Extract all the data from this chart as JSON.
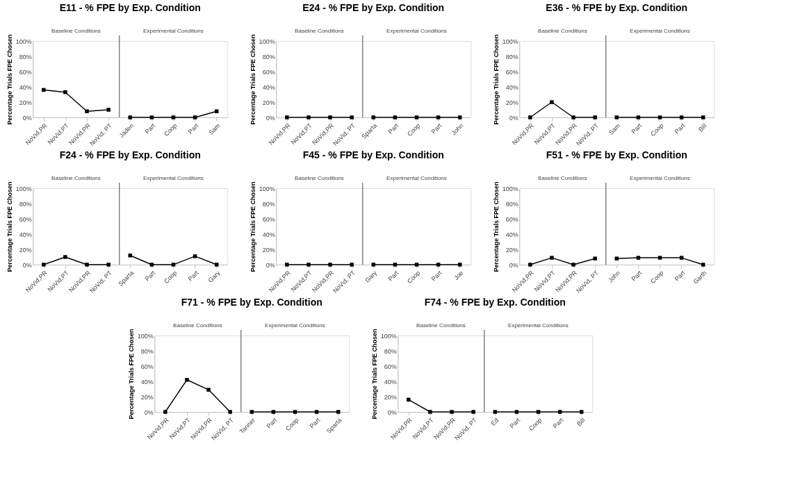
{
  "chart_data": [
    {
      "type": "line",
      "title": "E11 - % FPE by Exp. Condition",
      "ylabel": "Percentage Trials FPE Chosen",
      "categories": [
        "NoVid,PR",
        "NoVid,PT",
        "NoVid,PR",
        "NoVid, PT",
        "Jaden",
        "Part",
        "Coop",
        "Part",
        "Sam"
      ],
      "ylim": [
        0,
        100
      ],
      "yticks": [
        {
          "value": 0,
          "label": "0%"
        },
        {
          "value": 20,
          "label": "20%"
        },
        {
          "value": 40,
          "label": "40%"
        },
        {
          "value": 60,
          "label": "60%"
        },
        {
          "value": 80,
          "label": "80%"
        },
        {
          "value": 100,
          "label": "100%"
        }
      ],
      "annotations": [
        "Baseline Conditions",
        "Experimental  Conditions"
      ],
      "marker": "square",
      "series": [
        {
          "color": "#000000",
          "values": [
            36,
            33,
            8,
            10,
            null,
            null,
            null,
            null,
            null
          ]
        },
        {
          "color": "#000000",
          "values": [
            null,
            null,
            null,
            null,
            0,
            0,
            0,
            0,
            8
          ]
        }
      ]
    },
    {
      "type": "line",
      "title": "E24 - % FPE by Exp. Condition",
      "ylabel": "Percentage Trials FPE Chosen",
      "categories": [
        "NoVid,PR",
        "NoVid,PT",
        "NoVid,PR",
        "NoVid, PT",
        "Sparta",
        "Part",
        "Coop",
        "Part",
        "John"
      ],
      "ylim": [
        0,
        100
      ],
      "yticks": [
        {
          "value": 0,
          "label": "0%"
        },
        {
          "value": 20,
          "label": "20%"
        },
        {
          "value": 40,
          "label": "40%"
        },
        {
          "value": 60,
          "label": "60%"
        },
        {
          "value": 80,
          "label": "80%"
        },
        {
          "value": 100,
          "label": "100%"
        }
      ],
      "annotations": [
        "Baseline Conditions",
        "Experimental  Conditions"
      ],
      "marker": "square",
      "series": [
        {
          "color": "#000000",
          "values": [
            0,
            0,
            0,
            0,
            null,
            null,
            null,
            null,
            null
          ]
        },
        {
          "color": "#000000",
          "values": [
            null,
            null,
            null,
            null,
            0,
            0,
            0,
            0,
            0
          ]
        }
      ]
    },
    {
      "type": "line",
      "title": "E36 - % FPE by Exp. Condition",
      "ylabel": "Percentage Trials FPE Chosen",
      "categories": [
        "NoVid,PR",
        "NoVid,PT",
        "NoVid,PR",
        "NoVid, PT",
        "Sam",
        "Part",
        "Coop",
        "Part",
        "Bill"
      ],
      "ylim": [
        0,
        100
      ],
      "yticks": [
        {
          "value": 0,
          "label": "0%"
        },
        {
          "value": 20,
          "label": "20%"
        },
        {
          "value": 40,
          "label": "40%"
        },
        {
          "value": 60,
          "label": "60%"
        },
        {
          "value": 80,
          "label": "80%"
        },
        {
          "value": 100,
          "label": "100%"
        }
      ],
      "annotations": [
        "Baseline Conditions",
        "Experimental Conditions"
      ],
      "marker": "square",
      "series": [
        {
          "color": "#000000",
          "values": [
            0,
            20,
            0,
            0,
            null,
            null,
            null,
            null,
            null
          ]
        },
        {
          "color": "#000000",
          "values": [
            null,
            null,
            null,
            null,
            0,
            0,
            0,
            0,
            0
          ]
        }
      ]
    },
    {
      "type": "line",
      "title": "F24 - % FPE by Exp. Condition",
      "ylabel": "Percentage Trials FPE Chosen",
      "categories": [
        "NoVid,PR",
        "NoVid,PT",
        "NoVid,PR",
        "NoVid, PT",
        "Sparta",
        "Part",
        "Coop",
        "Part",
        "Gary"
      ],
      "ylim": [
        0,
        100
      ],
      "yticks": [
        {
          "value": 0,
          "label": "0%"
        },
        {
          "value": 20,
          "label": "20%"
        },
        {
          "value": 40,
          "label": "40%"
        },
        {
          "value": 60,
          "label": "60%"
        },
        {
          "value": 80,
          "label": "80%"
        },
        {
          "value": 100,
          "label": "100%"
        }
      ],
      "annotations": [
        "Baseline Conditions",
        "Experimental Conditions"
      ],
      "marker": "square",
      "series": [
        {
          "color": "#000000",
          "values": [
            0,
            10,
            0,
            0,
            null,
            null,
            null,
            null,
            null
          ]
        },
        {
          "color": "#000000",
          "values": [
            null,
            null,
            null,
            null,
            12,
            0,
            0,
            11,
            0
          ]
        }
      ]
    },
    {
      "type": "line",
      "title": "F45 - % FPE by Exp. Condition",
      "ylabel": "Percentage Trials FPE Chosen",
      "categories": [
        "NoVid,PR",
        "NoVid,PT",
        "NoVid,PR",
        "NoVid, PT",
        "Gary",
        "Part",
        "Coop",
        "Part",
        "Joe"
      ],
      "ylim": [
        0,
        100
      ],
      "yticks": [
        {
          "value": 0,
          "label": "0%"
        },
        {
          "value": 20,
          "label": "20%"
        },
        {
          "value": 40,
          "label": "40%"
        },
        {
          "value": 60,
          "label": "60%"
        },
        {
          "value": 80,
          "label": "80%"
        },
        {
          "value": 100,
          "label": "100%"
        }
      ],
      "annotations": [
        "Baseline Conditions",
        "Experimental Conditions"
      ],
      "marker": "square",
      "series": [
        {
          "color": "#000000",
          "values": [
            0,
            0,
            0,
            0,
            null,
            null,
            null,
            null,
            null
          ]
        },
        {
          "color": "#000000",
          "values": [
            null,
            null,
            null,
            null,
            0,
            0,
            0,
            0,
            0
          ]
        }
      ]
    },
    {
      "type": "line",
      "title": "F51 - % FPE by Exp. Condition",
      "ylabel": "Percentage Trials FPE Chosen",
      "categories": [
        "NoVid,PR",
        "NoVid,PT",
        "NoVid,PR",
        "NoVid, PT",
        "John",
        "Part",
        "Coop",
        "Part",
        "Garth"
      ],
      "ylim": [
        0,
        100
      ],
      "yticks": [
        {
          "value": 0,
          "label": "0%"
        },
        {
          "value": 20,
          "label": "20%"
        },
        {
          "value": 40,
          "label": "40%"
        },
        {
          "value": 60,
          "label": "60%"
        },
        {
          "value": 80,
          "label": "80%"
        },
        {
          "value": 100,
          "label": "100%"
        }
      ],
      "annotations": [
        "Baseline Conditions",
        "Experimental Conditions"
      ],
      "marker": "square",
      "series": [
        {
          "color": "#000000",
          "values": [
            0,
            9,
            0,
            8,
            null,
            null,
            null,
            null,
            null
          ]
        },
        {
          "color": "#000000",
          "values": [
            null,
            null,
            null,
            null,
            8,
            9,
            9,
            9,
            0
          ]
        }
      ]
    },
    {
      "type": "line",
      "title": "F71 - % FPE by Exp. Condition",
      "ylabel": "Percentage Trials FPE Chosen",
      "categories": [
        "NoVid,PR",
        "NoVid,PT",
        "NoVid,PR",
        "NoVid, PT",
        "Tanner",
        "Part",
        "Coop",
        "Part",
        "Sparta"
      ],
      "ylim": [
        0,
        100
      ],
      "yticks": [
        {
          "value": 0,
          "label": "0%"
        },
        {
          "value": 20,
          "label": "20%"
        },
        {
          "value": 40,
          "label": "40%"
        },
        {
          "value": 60,
          "label": "60%"
        },
        {
          "value": 80,
          "label": "80%"
        },
        {
          "value": 100,
          "label": "100%"
        }
      ],
      "annotations": [
        "Baseline Conditions",
        "Experimental Conditions"
      ],
      "marker": "square",
      "series": [
        {
          "color": "#000000",
          "values": [
            0,
            42,
            29,
            0,
            null,
            null,
            null,
            null,
            null
          ]
        },
        {
          "color": "#000000",
          "values": [
            null,
            null,
            null,
            null,
            0,
            0,
            0,
            0,
            0
          ]
        }
      ]
    },
    {
      "type": "line",
      "title": "F74 - % FPE by Exp. Condition",
      "ylabel": "Percentage Trials FPE Chosen",
      "categories": [
        "NoVid,PR",
        "NoVid,PT",
        "NoVid,PR",
        "NoVid, PT",
        "Ed",
        "Part",
        "Coop",
        "Part",
        "Bill"
      ],
      "ylim": [
        0,
        100
      ],
      "yticks": [
        {
          "value": 0,
          "label": "0%"
        },
        {
          "value": 20,
          "label": "20%"
        },
        {
          "value": 40,
          "label": "40%"
        },
        {
          "value": 60,
          "label": "60%"
        },
        {
          "value": 80,
          "label": "80%"
        },
        {
          "value": 100,
          "label": "100%"
        }
      ],
      "annotations": [
        "Baseline Conditions",
        "Experimental Conditions"
      ],
      "marker": "square",
      "series": [
        {
          "color": "#000000",
          "values": [
            16,
            0,
            0,
            0,
            null,
            null,
            null,
            null,
            null
          ]
        },
        {
          "color": "#000000",
          "values": [
            null,
            null,
            null,
            null,
            0,
            0,
            0,
            0,
            0
          ]
        }
      ]
    }
  ]
}
